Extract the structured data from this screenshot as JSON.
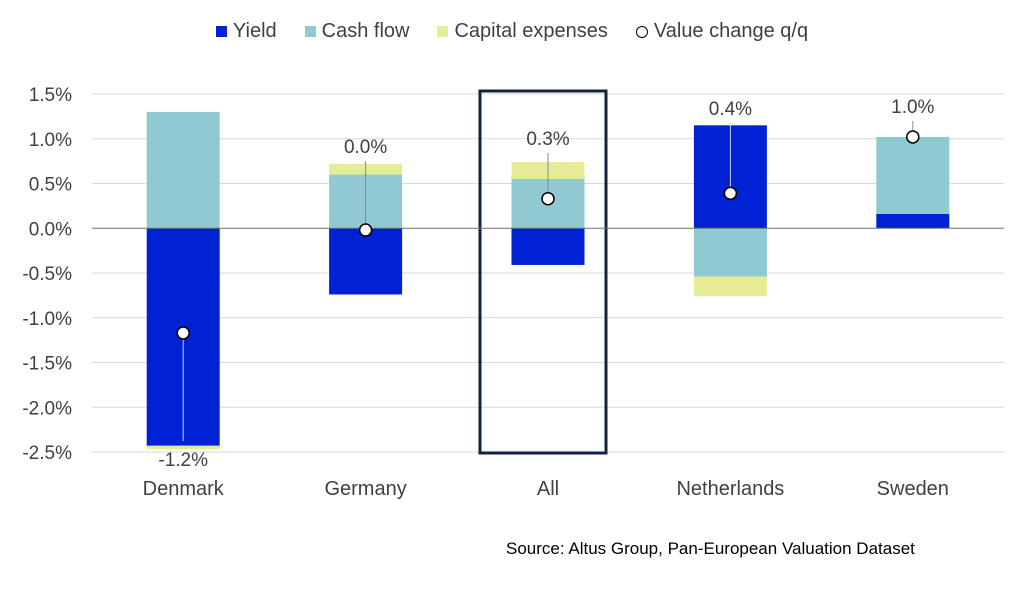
{
  "chart_data": {
    "type": "bar",
    "stacked": true,
    "title": "",
    "xlabel": "",
    "ylabel": "",
    "ylim": [
      -2.5,
      1.5
    ],
    "yticks": [
      -2.5,
      -2.0,
      -1.5,
      -1.0,
      -0.5,
      0.0,
      0.5,
      1.0,
      1.5
    ],
    "ytick_labels": [
      "-2.5%",
      "-2.0%",
      "-1.5%",
      "-1.0%",
      "-0.5%",
      "0.0%",
      "0.5%",
      "1.0%",
      "1.5%"
    ],
    "grid": true,
    "legend_position": "top",
    "categories": [
      "Denmark",
      "Germany",
      "All",
      "Netherlands",
      "Sweden"
    ],
    "highlighted_category": "All",
    "series": [
      {
        "name": "Yield",
        "color": "#0022d4",
        "values": [
          -2.43,
          -0.74,
          -0.41,
          1.15,
          0.16
        ]
      },
      {
        "name": "Cash flow",
        "color": "#90c9d1",
        "values": [
          1.3,
          0.6,
          0.55,
          -0.54,
          0.86
        ]
      },
      {
        "name": "Capital expenses",
        "color": "#e6ec95",
        "values": [
          -0.04,
          0.12,
          0.19,
          -0.22,
          0.0
        ]
      }
    ],
    "markers": {
      "name": "Value change q/q",
      "values": [
        -1.17,
        -0.02,
        0.33,
        0.39,
        1.02
      ],
      "labels": [
        "-1.2%",
        "0.0%",
        "0.3%",
        "0.4%",
        "1.0%"
      ]
    }
  },
  "source": "Source:  Altus Group, Pan-European Valuation Dataset"
}
